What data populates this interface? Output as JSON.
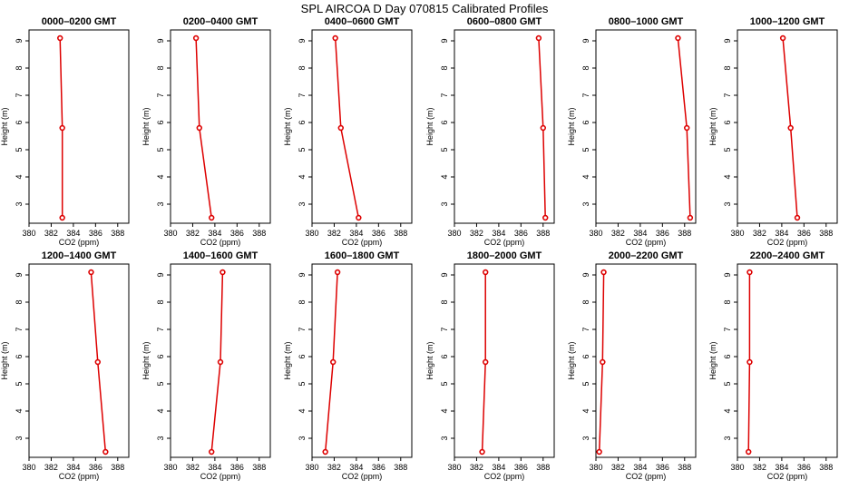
{
  "page": {
    "title": "SPL AIRCOA D  Day 070815  Calibrated Profiles"
  },
  "colors": {
    "series": "#dd0000",
    "axes": "#000000",
    "background": "#ffffff"
  },
  "chart_data": [
    {
      "type": "line",
      "title": "0000–0200 GMT",
      "xlabel": "CO2 (ppm)",
      "ylabel": "Height (m)",
      "xlim": [
        380,
        389
      ],
      "ylim": [
        2.3,
        9.4
      ],
      "xticks": [
        380,
        382,
        384,
        386,
        388
      ],
      "yticks": [
        3,
        4,
        5,
        6,
        7,
        8,
        9
      ],
      "grid": false,
      "series": [
        {
          "x": [
            382.8,
            383.0,
            383.0
          ],
          "y": [
            9.1,
            5.8,
            2.5
          ]
        }
      ]
    },
    {
      "type": "line",
      "title": "0200–0400 GMT",
      "xlabel": "CO2 (ppm)",
      "ylabel": "Height (m)",
      "xlim": [
        380,
        389
      ],
      "ylim": [
        2.3,
        9.4
      ],
      "xticks": [
        380,
        382,
        384,
        386,
        388
      ],
      "yticks": [
        3,
        4,
        5,
        6,
        7,
        8,
        9
      ],
      "grid": false,
      "series": [
        {
          "x": [
            382.3,
            382.6,
            383.7
          ],
          "y": [
            9.1,
            5.8,
            2.5
          ]
        }
      ]
    },
    {
      "type": "line",
      "title": "0400–0600 GMT",
      "xlabel": "CO2 (ppm)",
      "ylabel": "Height (m)",
      "xlim": [
        380,
        389
      ],
      "ylim": [
        2.3,
        9.4
      ],
      "xticks": [
        380,
        382,
        384,
        386,
        388
      ],
      "yticks": [
        3,
        4,
        5,
        6,
        7,
        8,
        9
      ],
      "grid": false,
      "series": [
        {
          "x": [
            382.1,
            382.6,
            384.2
          ],
          "y": [
            9.1,
            5.8,
            2.5
          ]
        }
      ]
    },
    {
      "type": "line",
      "title": "0600–0800 GMT",
      "xlabel": "CO2 (ppm)",
      "ylabel": "Height (m)",
      "xlim": [
        380,
        389
      ],
      "ylim": [
        2.3,
        9.4
      ],
      "xticks": [
        380,
        382,
        384,
        386,
        388
      ],
      "yticks": [
        3,
        4,
        5,
        6,
        7,
        8,
        9
      ],
      "grid": false,
      "series": [
        {
          "x": [
            387.6,
            388.0,
            388.2
          ],
          "y": [
            9.1,
            5.8,
            2.5
          ]
        }
      ]
    },
    {
      "type": "line",
      "title": "0800–1000 GMT",
      "xlabel": "CO2 (ppm)",
      "ylabel": "Height (m)",
      "xlim": [
        380,
        389
      ],
      "ylim": [
        2.3,
        9.4
      ],
      "xticks": [
        380,
        382,
        384,
        386,
        388
      ],
      "yticks": [
        3,
        4,
        5,
        6,
        7,
        8,
        9
      ],
      "grid": false,
      "series": [
        {
          "x": [
            387.4,
            388.2,
            388.5
          ],
          "y": [
            9.1,
            5.8,
            2.5
          ]
        }
      ]
    },
    {
      "type": "line",
      "title": "1000–1200 GMT",
      "xlabel": "CO2 (ppm)",
      "ylabel": "Height (m)",
      "xlim": [
        380,
        389
      ],
      "ylim": [
        2.3,
        9.4
      ],
      "xticks": [
        380,
        382,
        384,
        386,
        388
      ],
      "yticks": [
        3,
        4,
        5,
        6,
        7,
        8,
        9
      ],
      "grid": false,
      "series": [
        {
          "x": [
            384.1,
            384.8,
            385.4
          ],
          "y": [
            9.1,
            5.8,
            2.5
          ]
        }
      ]
    },
    {
      "type": "line",
      "title": "1200–1400 GMT",
      "xlabel": "CO2 (ppm)",
      "ylabel": "Height (m)",
      "xlim": [
        380,
        389
      ],
      "ylim": [
        2.3,
        9.4
      ],
      "xticks": [
        380,
        382,
        384,
        386,
        388
      ],
      "yticks": [
        3,
        4,
        5,
        6,
        7,
        8,
        9
      ],
      "grid": false,
      "series": [
        {
          "x": [
            385.6,
            386.2,
            386.9
          ],
          "y": [
            9.1,
            5.8,
            2.5
          ]
        }
      ]
    },
    {
      "type": "line",
      "title": "1400–1600 GMT",
      "xlabel": "CO2 (ppm)",
      "ylabel": "Height (m)",
      "xlim": [
        380,
        389
      ],
      "ylim": [
        2.3,
        9.4
      ],
      "xticks": [
        380,
        382,
        384,
        386,
        388
      ],
      "yticks": [
        3,
        4,
        5,
        6,
        7,
        8,
        9
      ],
      "grid": false,
      "series": [
        {
          "x": [
            384.7,
            384.5,
            383.7
          ],
          "y": [
            9.1,
            5.8,
            2.5
          ]
        }
      ]
    },
    {
      "type": "line",
      "title": "1600–1800 GMT",
      "xlabel": "CO2 (ppm)",
      "ylabel": "Height (m)",
      "xlim": [
        380,
        389
      ],
      "ylim": [
        2.3,
        9.4
      ],
      "xticks": [
        380,
        382,
        384,
        386,
        388
      ],
      "yticks": [
        3,
        4,
        5,
        6,
        7,
        8,
        9
      ],
      "grid": false,
      "series": [
        {
          "x": [
            382.3,
            381.9,
            381.2
          ],
          "y": [
            9.1,
            5.8,
            2.5
          ]
        }
      ]
    },
    {
      "type": "line",
      "title": "1800–2000 GMT",
      "xlabel": "CO2 (ppm)",
      "ylabel": "Height (m)",
      "xlim": [
        380,
        389
      ],
      "ylim": [
        2.3,
        9.4
      ],
      "xticks": [
        380,
        382,
        384,
        386,
        388
      ],
      "yticks": [
        3,
        4,
        5,
        6,
        7,
        8,
        9
      ],
      "grid": false,
      "series": [
        {
          "x": [
            382.8,
            382.8,
            382.5
          ],
          "y": [
            9.1,
            5.8,
            2.5
          ]
        }
      ]
    },
    {
      "type": "line",
      "title": "2000–2200 GMT",
      "xlabel": "CO2 (ppm)",
      "ylabel": "Height (m)",
      "xlim": [
        380,
        389
      ],
      "ylim": [
        2.3,
        9.4
      ],
      "xticks": [
        380,
        382,
        384,
        386,
        388
      ],
      "yticks": [
        3,
        4,
        5,
        6,
        7,
        8,
        9
      ],
      "grid": false,
      "series": [
        {
          "x": [
            380.7,
            380.6,
            380.3
          ],
          "y": [
            9.1,
            5.8,
            2.5
          ]
        }
      ]
    },
    {
      "type": "line",
      "title": "2200–2400 GMT",
      "xlabel": "CO2 (ppm)",
      "ylabel": "Height (m)",
      "xlim": [
        380,
        389
      ],
      "ylim": [
        2.3,
        9.4
      ],
      "xticks": [
        380,
        382,
        384,
        386,
        388
      ],
      "yticks": [
        3,
        4,
        5,
        6,
        7,
        8,
        9
      ],
      "grid": false,
      "series": [
        {
          "x": [
            381.1,
            381.1,
            381.0
          ],
          "y": [
            9.1,
            5.8,
            2.5
          ]
        }
      ]
    }
  ]
}
